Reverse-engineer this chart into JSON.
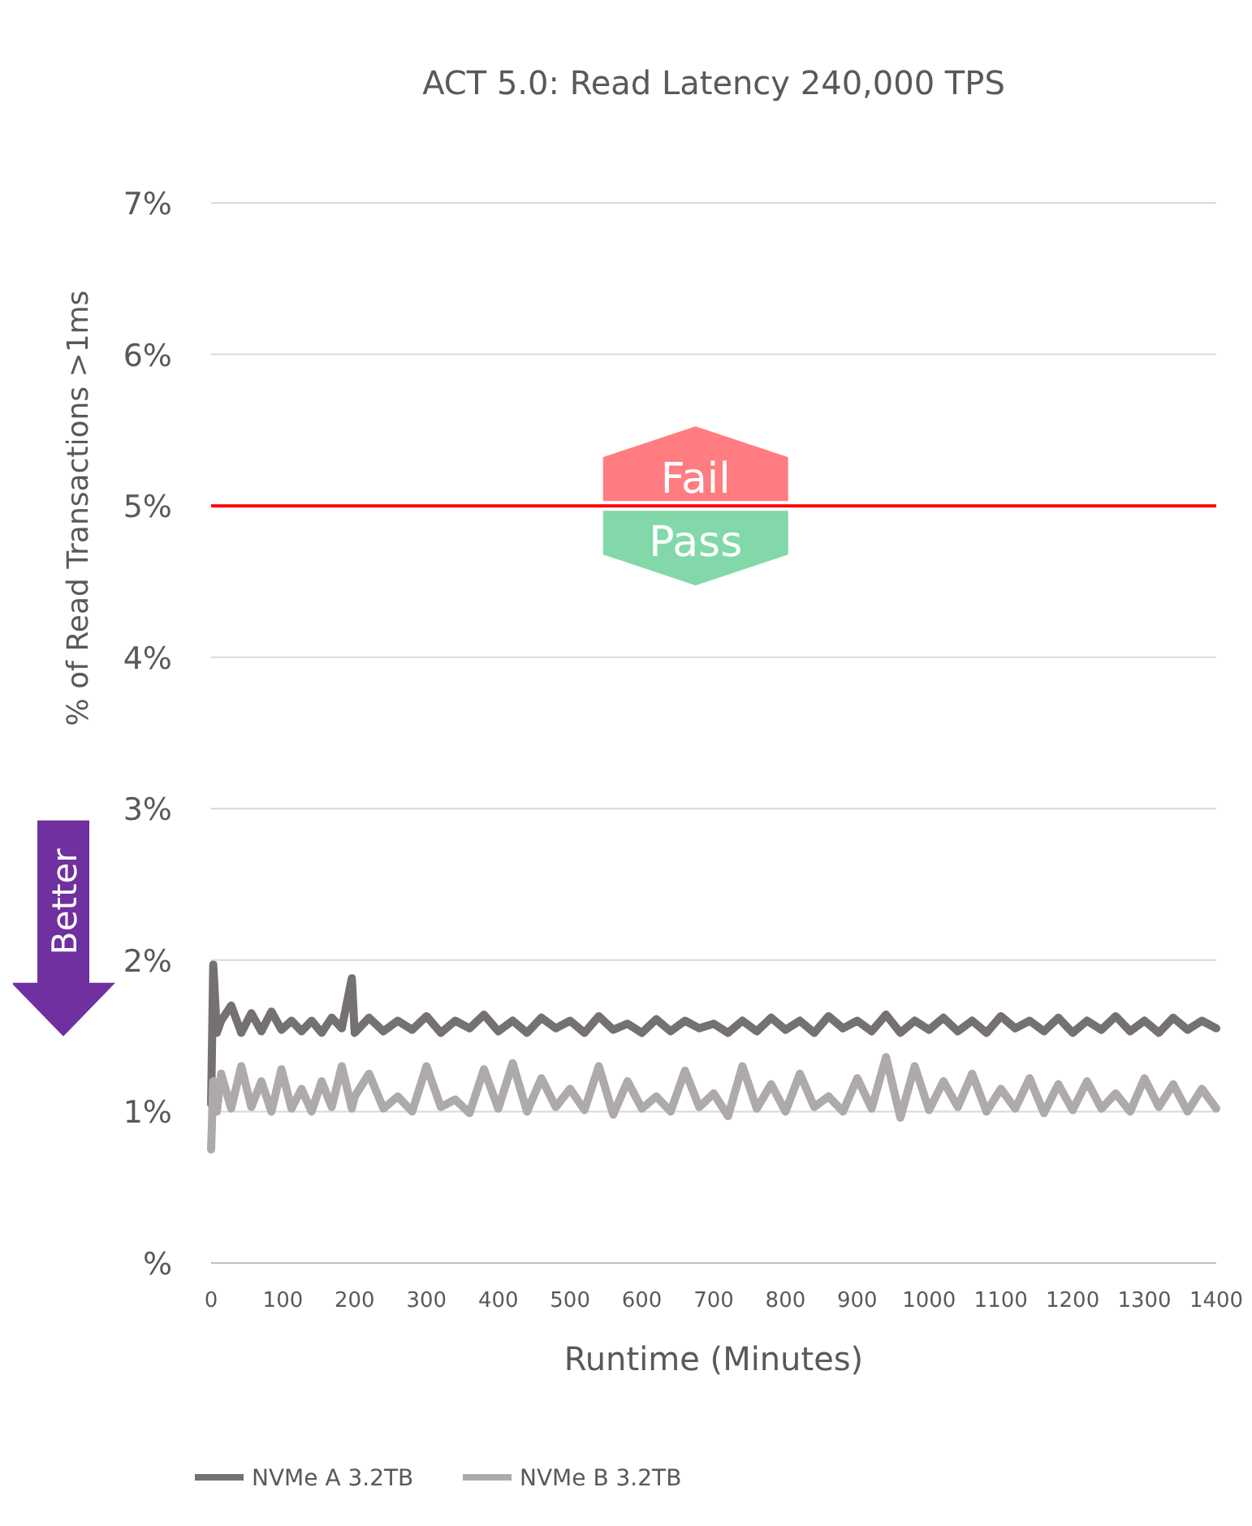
{
  "chart_data": {
    "type": "line",
    "title": "ACT 5.0:  Read Latency 240,000 TPS",
    "xlabel": "Runtime (Minutes)",
    "ylabel": "% of Read Transactions >1ms",
    "xlim": [
      0,
      1400
    ],
    "xticks": [
      0,
      100,
      200,
      300,
      400,
      500,
      600,
      700,
      800,
      900,
      1000,
      1100,
      1200,
      1300,
      1400
    ],
    "ylim": [
      0,
      7
    ],
    "yticks": [
      {
        "value": 0,
        "label": "%"
      },
      {
        "value": 1,
        "label": "1%"
      },
      {
        "value": 2,
        "label": "2%"
      },
      {
        "value": 3,
        "label": "3%"
      },
      {
        "value": 4,
        "label": "4%"
      },
      {
        "value": 5,
        "label": "5%"
      },
      {
        "value": 6,
        "label": "6%"
      },
      {
        "value": 7,
        "label": "7%"
      }
    ],
    "grid": "y",
    "legend": "bottom",
    "marker": "none",
    "line_style": "solid",
    "ref_lines": [
      {
        "axis": "y",
        "value": 5,
        "color": "#ff0000"
      }
    ],
    "annotations": [
      "Fail",
      "Pass",
      "Better"
    ],
    "series": [
      {
        "name": "NVMe A 3.2TB",
        "color": "#767171",
        "x": [
          0,
          3,
          8,
          14,
          28,
          42,
          56,
          70,
          84,
          98,
          112,
          126,
          140,
          154,
          168,
          182,
          196,
          200,
          220,
          240,
          260,
          280,
          300,
          320,
          340,
          360,
          380,
          400,
          420,
          440,
          460,
          480,
          500,
          520,
          540,
          560,
          580,
          600,
          620,
          640,
          660,
          680,
          700,
          720,
          740,
          760,
          780,
          800,
          820,
          840,
          860,
          880,
          900,
          920,
          940,
          960,
          980,
          1000,
          1020,
          1040,
          1060,
          1080,
          1100,
          1120,
          1140,
          1160,
          1180,
          1200,
          1220,
          1240,
          1260,
          1280,
          1300,
          1320,
          1340,
          1360,
          1380,
          1400
        ],
        "values": [
          1.05,
          1.97,
          1.52,
          1.6,
          1.7,
          1.52,
          1.65,
          1.53,
          1.66,
          1.54,
          1.6,
          1.53,
          1.6,
          1.52,
          1.62,
          1.55,
          1.88,
          1.52,
          1.62,
          1.53,
          1.6,
          1.54,
          1.63,
          1.52,
          1.6,
          1.55,
          1.64,
          1.53,
          1.6,
          1.52,
          1.62,
          1.55,
          1.6,
          1.52,
          1.63,
          1.54,
          1.58,
          1.52,
          1.61,
          1.53,
          1.6,
          1.55,
          1.58,
          1.52,
          1.6,
          1.53,
          1.62,
          1.54,
          1.6,
          1.52,
          1.63,
          1.55,
          1.6,
          1.53,
          1.64,
          1.52,
          1.6,
          1.54,
          1.62,
          1.53,
          1.6,
          1.52,
          1.63,
          1.55,
          1.6,
          1.53,
          1.62,
          1.52,
          1.6,
          1.54,
          1.63,
          1.53,
          1.6,
          1.52,
          1.62,
          1.54,
          1.6,
          1.55
        ]
      },
      {
        "name": "NVMe B 3.2TB",
        "color": "#aeaaaa",
        "x": [
          0,
          3,
          8,
          14,
          28,
          42,
          56,
          70,
          84,
          98,
          112,
          126,
          140,
          154,
          168,
          182,
          196,
          200,
          220,
          240,
          260,
          280,
          300,
          320,
          340,
          360,
          380,
          400,
          420,
          440,
          460,
          480,
          500,
          520,
          540,
          560,
          580,
          600,
          620,
          640,
          660,
          680,
          700,
          720,
          740,
          760,
          780,
          800,
          820,
          840,
          860,
          880,
          900,
          920,
          940,
          960,
          980,
          1000,
          1020,
          1040,
          1060,
          1080,
          1100,
          1120,
          1140,
          1160,
          1180,
          1200,
          1220,
          1240,
          1260,
          1280,
          1300,
          1320,
          1340,
          1360,
          1380,
          1400
        ],
        "values": [
          0.75,
          1.2,
          1.0,
          1.25,
          1.02,
          1.3,
          1.03,
          1.2,
          1.0,
          1.28,
          1.02,
          1.15,
          1.0,
          1.2,
          1.03,
          1.3,
          1.02,
          1.1,
          1.25,
          1.02,
          1.1,
          1.0,
          1.3,
          1.03,
          1.08,
          0.99,
          1.28,
          1.02,
          1.32,
          1.0,
          1.22,
          1.03,
          1.15,
          1.01,
          1.3,
          0.98,
          1.2,
          1.02,
          1.1,
          1.0,
          1.27,
          1.03,
          1.12,
          0.97,
          1.3,
          1.02,
          1.18,
          1.0,
          1.25,
          1.03,
          1.1,
          1.0,
          1.22,
          1.02,
          1.36,
          0.96,
          1.3,
          1.01,
          1.2,
          1.03,
          1.25,
          1.0,
          1.15,
          1.02,
          1.22,
          0.99,
          1.18,
          1.01,
          1.2,
          1.02,
          1.12,
          1.0,
          1.22,
          1.03,
          1.18,
          1.0,
          1.15,
          1.02
        ]
      }
    ]
  }
}
